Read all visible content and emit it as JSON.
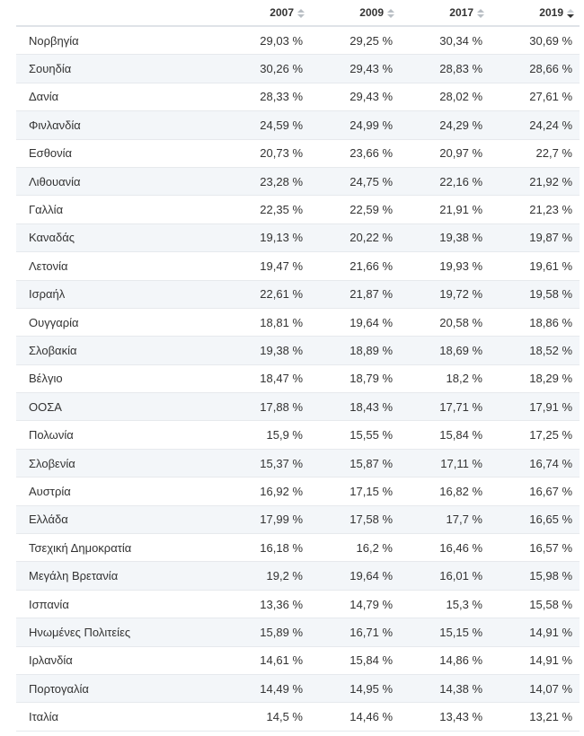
{
  "table": {
    "header": [
      "",
      "2007",
      "2009",
      "2017",
      "2019"
    ],
    "rows": [
      [
        "Νορβηγία",
        "29,03 %",
        "29,25 %",
        "30,34 %",
        "30,69 %"
      ],
      [
        "Σουηδία",
        "30,26 %",
        "29,43 %",
        "28,83 %",
        "28,66 %"
      ],
      [
        "Δανία",
        "28,33 %",
        "29,43 %",
        "28,02 %",
        "27,61 %"
      ],
      [
        "Φινλανδία",
        "24,59 %",
        "24,99 %",
        "24,29 %",
        "24,24 %"
      ],
      [
        "Εσθονία",
        "20,73 %",
        "23,66 %",
        "20,97 %",
        "22,7 %"
      ],
      [
        "Λιθουανία",
        "23,28 %",
        "24,75 %",
        "22,16 %",
        "21,92 %"
      ],
      [
        "Γαλλία",
        "22,35 %",
        "22,59 %",
        "21,91 %",
        "21,23 %"
      ],
      [
        "Καναδάς",
        "19,13 %",
        "20,22 %",
        "19,38 %",
        "19,87 %"
      ],
      [
        "Λετονία",
        "19,47 %",
        "21,66 %",
        "19,93 %",
        "19,61 %"
      ],
      [
        "Ισραήλ",
        "22,61 %",
        "21,87 %",
        "19,72 %",
        "19,58 %"
      ],
      [
        "Ουγγαρία",
        "18,81 %",
        "19,64 %",
        "20,58 %",
        "18,86 %"
      ],
      [
        "Σλοβακία",
        "19,38 %",
        "18,89 %",
        "18,69 %",
        "18,52 %"
      ],
      [
        "Βέλγιο",
        "18,47 %",
        "18,79 %",
        "18,2 %",
        "18,29 %"
      ],
      [
        "ΟΟΣΑ",
        "17,88 %",
        "18,43 %",
        "17,71 %",
        "17,91 %"
      ],
      [
        "Πολωνία",
        "15,9 %",
        "15,55 %",
        "15,84 %",
        "17,25 %"
      ],
      [
        "Σλοβενία",
        "15,37 %",
        "15,87 %",
        "17,11 %",
        "16,74 %"
      ],
      [
        "Αυστρία",
        "16,92 %",
        "17,15 %",
        "16,82 %",
        "16,67 %"
      ],
      [
        "Ελλάδα",
        "17,99 %",
        "17,58 %",
        "17,7 %",
        "16,65 %"
      ],
      [
        "Τσεχική Δημοκρατία",
        "16,18 %",
        "16,2 %",
        "16,46 %",
        "16,57 %"
      ],
      [
        "Μεγάλη Βρετανία",
        "19,2 %",
        "19,64 %",
        "16,01 %",
        "15,98 %"
      ],
      [
        "Ισπανία",
        "13,36 %",
        "14,79 %",
        "15,3 %",
        "15,58 %"
      ],
      [
        "Ηνωμένες Πολιτείες",
        "15,89 %",
        "16,71 %",
        "15,15 %",
        "14,91 %"
      ],
      [
        "Ιρλανδία",
        "14,61 %",
        "15,84 %",
        "14,86 %",
        "14,91 %"
      ],
      [
        "Πορτογαλία",
        "14,49 %",
        "14,95 %",
        "14,38 %",
        "14,07 %"
      ],
      [
        "Ιταλία",
        "14,5 %",
        "14,46 %",
        "13,43 %",
        "13,21 %"
      ]
    ]
  }
}
